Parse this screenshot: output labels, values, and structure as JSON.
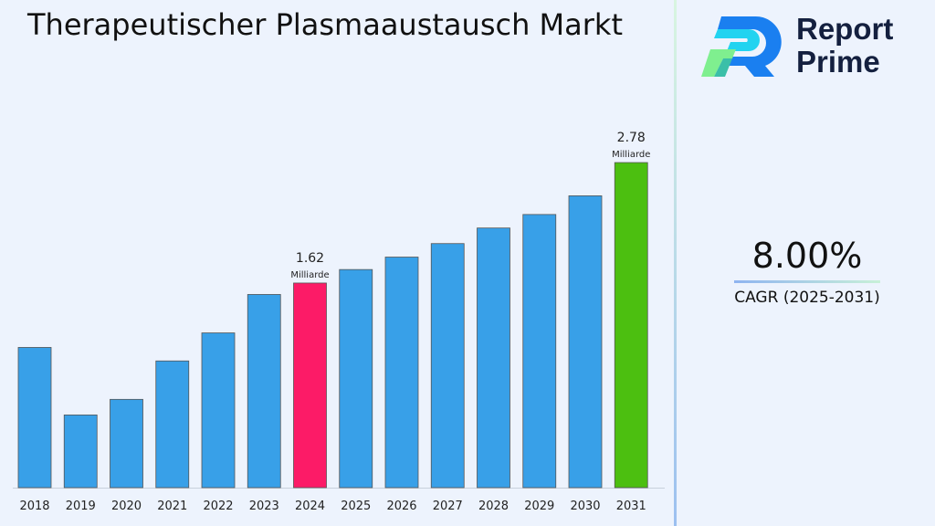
{
  "title": "Therapeutischer Plasmaaustausch Markt",
  "logo": {
    "line1": "Report",
    "line2": "Prime"
  },
  "cagr": {
    "value": "8.00%",
    "label": "CAGR (2025-2031)"
  },
  "chart_data": {
    "type": "bar",
    "title": "Therapeutischer Plasmaaustausch Markt",
    "xlabel": "",
    "ylabel": "",
    "categories": [
      "2018",
      "2019",
      "2020",
      "2021",
      "2022",
      "2023",
      "2024",
      "2025",
      "2026",
      "2027",
      "2028",
      "2029",
      "2030",
      "2031"
    ],
    "values": [
      1.0,
      0.35,
      0.5,
      0.87,
      1.14,
      1.51,
      1.62,
      1.75,
      1.87,
      2.0,
      2.15,
      2.28,
      2.46,
      2.78
    ],
    "ylim": [
      -0.35,
      3.0
    ],
    "grid": false,
    "unit": "Milliarde",
    "data_labels": [
      {
        "category": "2024",
        "value": "1.62",
        "unit": "Milliarde"
      },
      {
        "category": "2031",
        "value": "2.78",
        "unit": "Milliarde"
      }
    ],
    "colors": {
      "default": "#38a0e8",
      "2024": "#fc1b67",
      "2031": "#4cbf10"
    }
  }
}
